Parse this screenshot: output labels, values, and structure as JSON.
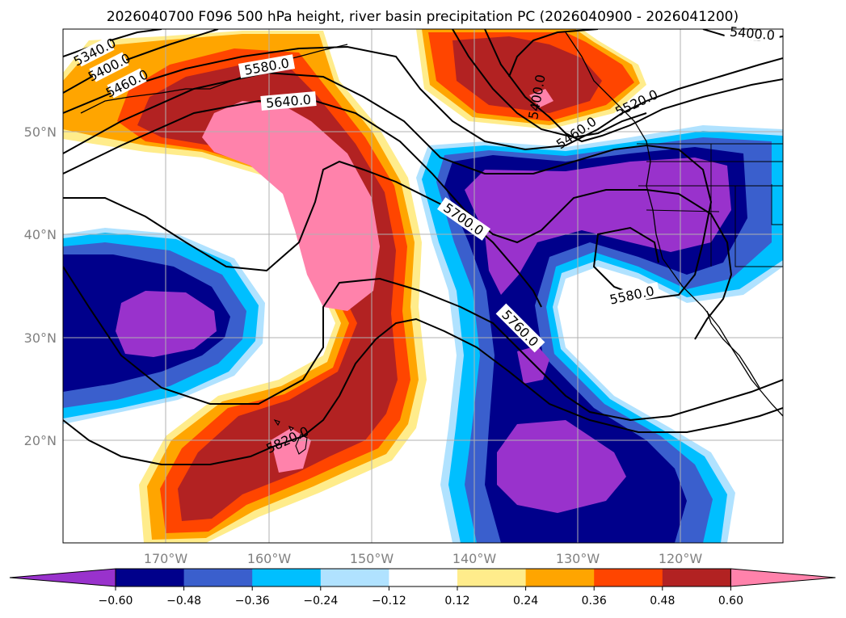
{
  "title": "2026040700 F096 500 hPa height, river basin precipitation PC (2026040900 - 2026041200)",
  "map": {
    "lon_range": [
      -180,
      -110
    ],
    "lat_range": [
      10,
      60
    ],
    "lat_labels": [
      "20°N",
      "30°N",
      "40°N",
      "50°N"
    ],
    "lon_labels": [
      "170°W",
      "160°W",
      "150°W",
      "140°W",
      "130°W",
      "120°W"
    ],
    "grid": true
  },
  "contours": {
    "field": "500 hPa height",
    "labels": [
      "5340.0",
      "5400.0",
      "5460.0",
      "5580.0",
      "5640.0",
      "5400.0",
      "5460.0",
      "5520.0",
      "5400.0",
      "5700.0",
      "5580.0",
      "5760.0",
      "5820.0"
    ]
  },
  "colorbar": {
    "ticks": [
      "−0.60",
      "−0.48",
      "−0.36",
      "−0.24",
      "−0.12",
      "0.12",
      "0.24",
      "0.36",
      "0.48",
      "0.60"
    ],
    "colors": [
      "#9932cc",
      "#00008b",
      "#3a5fcd",
      "#00bfff",
      "#b0e2ff",
      "#ffffff",
      "#ffec8b",
      "#ffa500",
      "#ff4500",
      "#b22222",
      "#ff82ab"
    ],
    "extend": "both"
  },
  "colors": {
    "grid": "#b0b0b0",
    "tick_label": "#808080"
  }
}
